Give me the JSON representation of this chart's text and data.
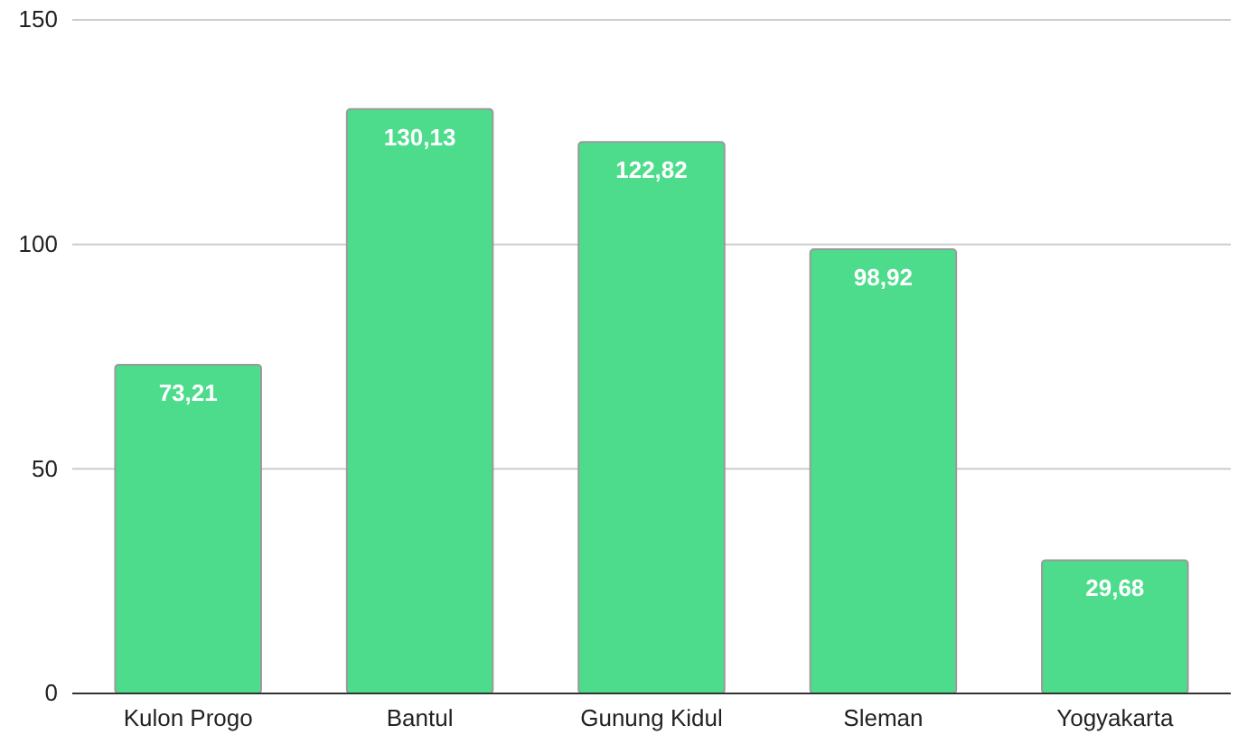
{
  "chart_data": {
    "type": "bar",
    "categories": [
      "Kulon Progo",
      "Bantul",
      "Gunung Kidul",
      "Sleman",
      "Yogyakarta"
    ],
    "values": [
      73.21,
      130.13,
      122.82,
      98.92,
      29.68
    ],
    "value_labels": [
      "73,21",
      "130,13",
      "122,82",
      "98,92",
      "29,68"
    ],
    "color": "#4cdc8c",
    "ylim": [
      0,
      150
    ],
    "yticks": [
      0,
      50,
      100,
      150
    ],
    "grid": "y"
  }
}
